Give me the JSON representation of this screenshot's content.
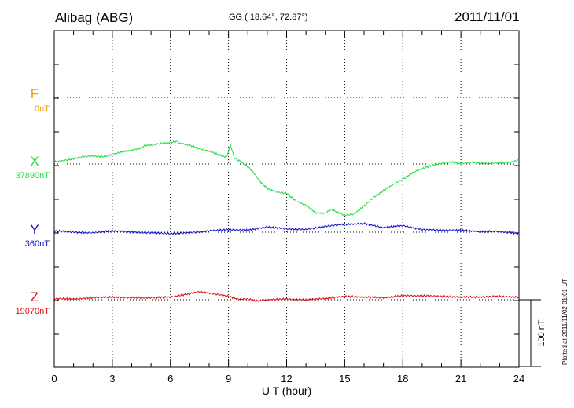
{
  "header": {
    "station": "Alibag (ABG)",
    "coordinates": "GG ( 18.64°,  72.87°)",
    "date": "2011/11/01"
  },
  "footer_note": "Plotted at 2011/11/02 01:01  UT",
  "colors": {
    "F": "#f0a000",
    "X": "#22dd44",
    "Y": "#1010cc",
    "Z": "#dd1010"
  },
  "chart_data": {
    "type": "line",
    "title": "Alibag (ABG)",
    "xlabel": "U T (hour)",
    "ylabel": "",
    "xlim": [
      0,
      24
    ],
    "x_ticks": [
      0,
      3,
      6,
      9,
      12,
      15,
      18,
      21,
      24
    ],
    "grid": true,
    "scale_bar": "100 nT",
    "series": [
      {
        "name": "F",
        "baseline": "0nT",
        "color": "#f0a000",
        "x": [],
        "y": []
      },
      {
        "name": "X",
        "baseline": "37890nT",
        "color": "#22dd44",
        "x": [
          0,
          0.5,
          1,
          1.5,
          2,
          2.5,
          3,
          3.5,
          4,
          4.5,
          4.7,
          5,
          5.5,
          6,
          6.3,
          6.5,
          7,
          7.5,
          8,
          8.5,
          8.9,
          9.1,
          9.3,
          9.6,
          10,
          10.3,
          10.6,
          11,
          11.5,
          12,
          12.5,
          13,
          13.5,
          14,
          14.3,
          14.6,
          15,
          15.5,
          16,
          16.5,
          17,
          17.5,
          18,
          18.5,
          19,
          19.5,
          20,
          20.5,
          21,
          21.5,
          22,
          22.5,
          23,
          23.5,
          24
        ],
        "y": [
          3,
          5,
          8,
          11,
          12,
          11,
          14,
          18,
          21,
          24,
          28,
          28,
          31,
          32,
          34,
          31,
          28,
          23,
          19,
          14,
          10,
          29,
          9,
          4,
          -4,
          -13,
          -25,
          -37,
          -42,
          -44,
          -56,
          -62,
          -73,
          -74,
          -68,
          -72,
          -77,
          -75,
          -63,
          -50,
          -40,
          -31,
          -23,
          -13,
          -7,
          -2,
          1,
          3,
          0,
          3,
          1,
          1,
          2,
          2,
          6
        ]
      },
      {
        "name": "Y",
        "baseline": "360nT",
        "color": "#1010cc",
        "x": [
          0,
          1,
          2,
          3,
          4,
          5,
          6,
          7,
          8,
          9,
          10,
          11,
          12,
          13,
          14,
          15,
          16,
          17,
          18,
          19,
          20,
          21,
          22,
          23,
          24
        ],
        "y": [
          2,
          0,
          -1,
          2,
          0,
          -1,
          -2,
          -1,
          2,
          4,
          3,
          8,
          5,
          4,
          9,
          12,
          13,
          7,
          10,
          4,
          3,
          3,
          1,
          1,
          -2
        ]
      },
      {
        "name": "Z",
        "baseline": "19070nT",
        "color": "#dd1010",
        "x": [
          0,
          1,
          2,
          3,
          4,
          5,
          6,
          7,
          7.5,
          8,
          9,
          9.5,
          10,
          10.5,
          11,
          12,
          13,
          14,
          15,
          16,
          17,
          18,
          19,
          20,
          21,
          22,
          23,
          24
        ],
        "y": [
          2,
          1,
          3,
          4,
          3,
          3,
          4,
          9,
          12,
          10,
          5,
          1,
          1,
          -2,
          0,
          1,
          0,
          2,
          5,
          4,
          3,
          6,
          6,
          5,
          4,
          4,
          5,
          4
        ]
      }
    ]
  }
}
